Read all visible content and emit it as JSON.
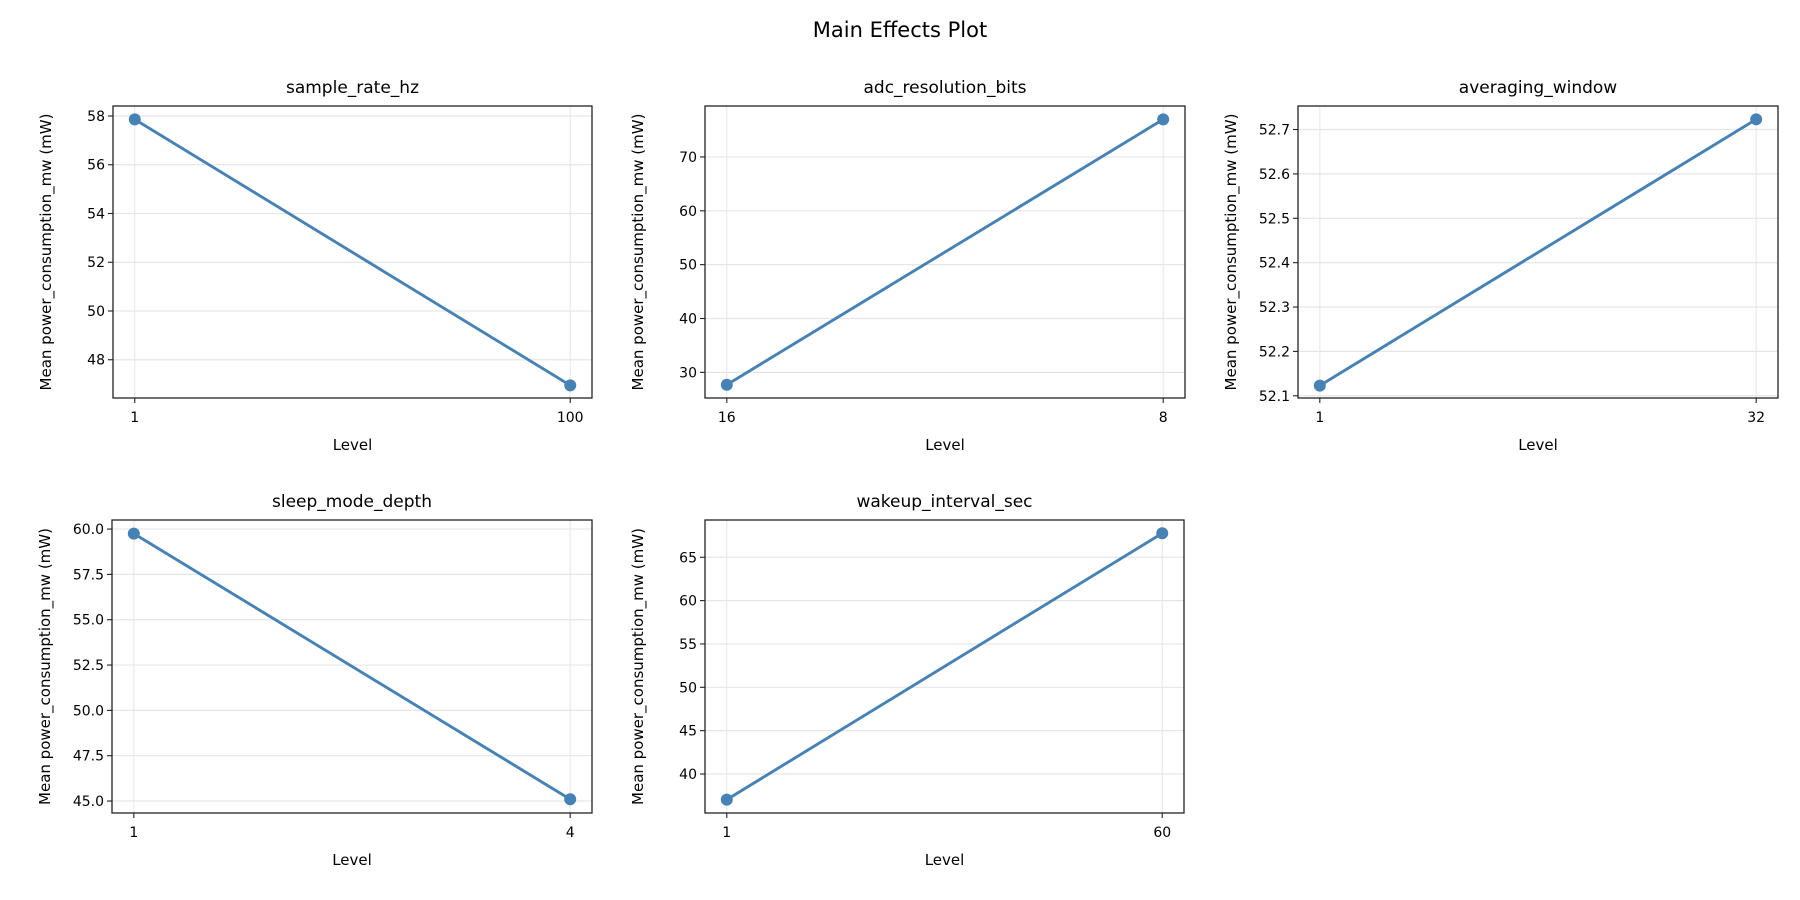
{
  "chart_data": {
    "title": "Main Effects Plot",
    "line_color": "#4682b4",
    "panels": [
      {
        "type": "line",
        "title": "sample_rate_hz",
        "xlabel": "Level",
        "ylabel": "Mean power_consumption_mw (mW)",
        "categories": [
          "1",
          "100"
        ],
        "values": [
          57.86,
          46.95
        ],
        "ylim": [
          46.43,
          58.41
        ],
        "yticks": [
          48,
          50,
          52,
          54,
          56,
          58
        ],
        "ytick_labels": [
          "48",
          "50",
          "52",
          "54",
          "56",
          "58"
        ],
        "grid": true
      },
      {
        "type": "line",
        "title": "adc_resolution_bits",
        "xlabel": "Level",
        "ylabel": "Mean power_consumption_mw (mW)",
        "categories": [
          "16",
          "8"
        ],
        "values": [
          27.7,
          76.98
        ],
        "ylim": [
          25.24,
          79.46
        ],
        "yticks": [
          30,
          40,
          50,
          60,
          70
        ],
        "ytick_labels": [
          "30",
          "40",
          "50",
          "60",
          "70"
        ],
        "grid": true
      },
      {
        "type": "line",
        "title": "averaging_window",
        "xlabel": "Level",
        "ylabel": "Mean power_consumption_mw (mW)",
        "categories": [
          "1",
          "32"
        ],
        "values": [
          52.123,
          52.723
        ],
        "ylim": [
          52.095,
          52.753
        ],
        "yticks": [
          52.1,
          52.2,
          52.3,
          52.4,
          52.5,
          52.6,
          52.7
        ],
        "ytick_labels": [
          "52.1",
          "52.2",
          "52.3",
          "52.4",
          "52.5",
          "52.6",
          "52.7"
        ],
        "grid": true
      },
      {
        "type": "line",
        "title": "sleep_mode_depth",
        "xlabel": "Level",
        "ylabel": "Mean power_consumption_mw (mW)",
        "categories": [
          "1",
          "4"
        ],
        "values": [
          59.75,
          45.1
        ],
        "ylim": [
          44.34,
          60.5
        ],
        "yticks": [
          45,
          47.5,
          50,
          52.5,
          55,
          57.5,
          60
        ],
        "ytick_labels": [
          "45.0",
          "47.5",
          "50.0",
          "52.5",
          "55.0",
          "57.5",
          "60.0"
        ],
        "grid": true
      },
      {
        "type": "line",
        "title": "wakeup_interval_sec",
        "xlabel": "Level",
        "ylabel": "Mean power_consumption_mw (mW)",
        "categories": [
          "1",
          "60"
        ],
        "values": [
          37.04,
          67.77
        ],
        "ylim": [
          35.5,
          69.3
        ],
        "yticks": [
          40,
          45,
          50,
          55,
          60,
          65
        ],
        "ytick_labels": [
          "40",
          "45",
          "50",
          "55",
          "60",
          "65"
        ],
        "grid": true
      }
    ]
  }
}
